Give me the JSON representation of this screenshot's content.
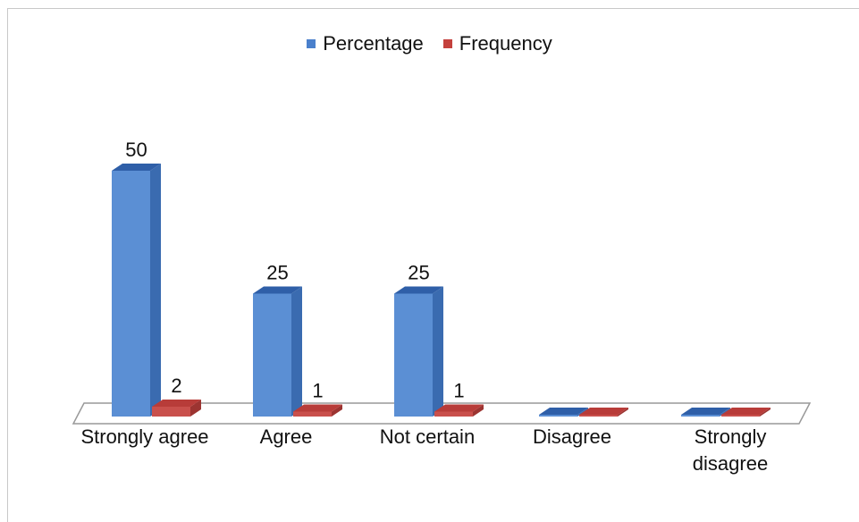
{
  "chart_data": {
    "type": "bar",
    "style": "3d-clustered-column",
    "categories": [
      "Strongly agree",
      "Agree",
      "Not certain",
      "Disagree",
      "Strongly\ndisagree"
    ],
    "series": [
      {
        "name": "Percentage",
        "values": [
          50,
          25,
          25,
          0,
          0
        ],
        "labels": [
          "50",
          "25",
          "25",
          "",
          ""
        ]
      },
      {
        "name": "Frequency",
        "values": [
          2,
          1,
          1,
          0,
          0
        ],
        "labels": [
          "2",
          "1",
          "1",
          "",
          ""
        ]
      }
    ],
    "legend_position": "top",
    "grid": false,
    "ylim": [
      0,
      50
    ],
    "colors": {
      "Percentage": {
        "front": "#5b8fd4",
        "side": "#3a6bb0",
        "top": "#2f5fa8"
      },
      "Frequency": {
        "front": "#c9504c",
        "side": "#9c3431",
        "top": "#b83c39"
      },
      "floor_fill": "#ffffff",
      "floor_stroke": "#999999"
    }
  }
}
